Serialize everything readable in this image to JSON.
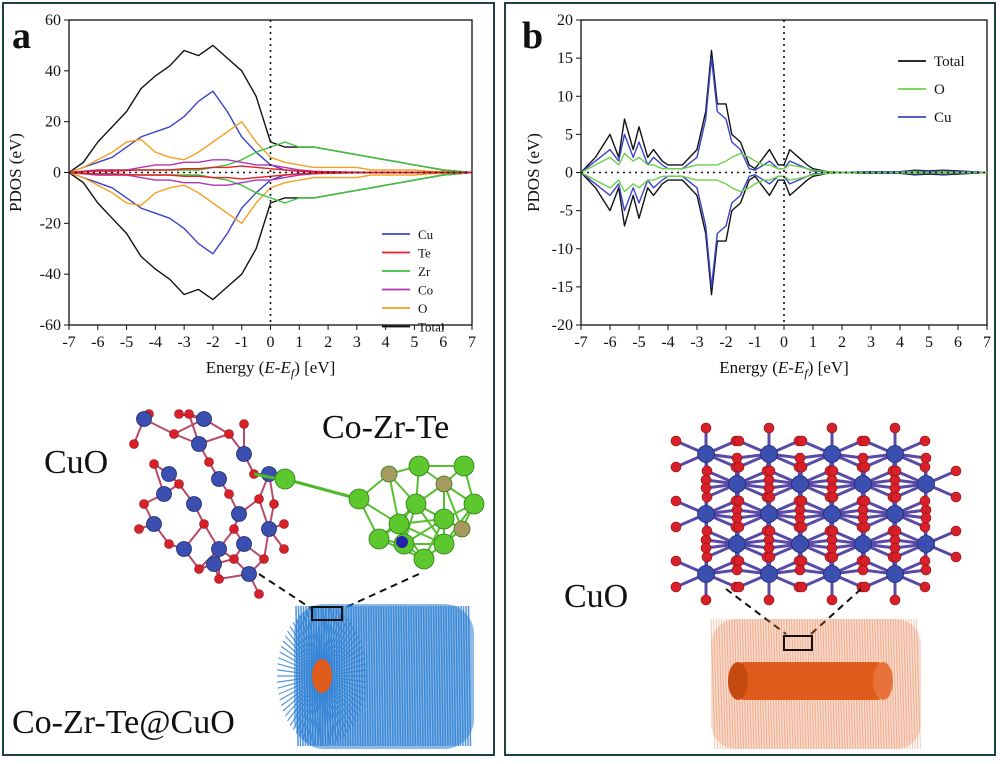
{
  "panel_a": {
    "label": "a",
    "structure_labels": {
      "cuo": "CuO",
      "cluster": "Co-Zr-Te",
      "composite": "Co-Zr-Te@CuO"
    }
  },
  "panel_b": {
    "label": "b",
    "structure_labels": {
      "cuo": "CuO"
    }
  },
  "colors": {
    "Cu": "#3c43c8",
    "Te": "#e8202a",
    "Zr": "#3cc43c",
    "Co": "#b335b3",
    "O_a": "#f5a023",
    "O_b": "#6ed04a",
    "Total": "#111111",
    "cu_atom": "#3a4fb0",
    "o_atom": "#d8202a",
    "zr_atom": "#5dc72e",
    "te_atom": "#a89a5e",
    "nanorod_blue": "#2e7fd4",
    "nanorod_orange": "#e05c1c"
  },
  "chart_data": [
    {
      "type": "line",
      "panel": "a",
      "title": "",
      "xlabel": "Energy (E-Ef) [eV]",
      "ylabel": "PDOS (eV)",
      "xlim": [
        -7,
        7
      ],
      "ylim": [
        -60,
        60
      ],
      "xticks": [
        -7,
        -6,
        -5,
        -4,
        -3,
        -2,
        -1,
        0,
        1,
        2,
        3,
        4,
        5,
        6,
        7
      ],
      "yticks": [
        -60,
        -40,
        -20,
        0,
        20,
        40,
        60
      ],
      "fermi_line_x": 0,
      "legend_position": "bottom-right",
      "legend": [
        "Cu",
        "Te",
        "Zr",
        "Co",
        "O",
        "Total"
      ],
      "x": [
        -7,
        -6.5,
        -6,
        -5.5,
        -5,
        -4.5,
        -4,
        -3.5,
        -3,
        -2.5,
        -2,
        -1.5,
        -1,
        -0.5,
        0,
        0.5,
        1,
        1.5,
        2,
        2.5,
        3,
        3.5,
        4,
        4.5,
        5,
        5.5,
        6,
        6.5,
        7
      ],
      "series": [
        {
          "name": "Total",
          "values": [
            0,
            4,
            12,
            18,
            24,
            33,
            38,
            42,
            48,
            46,
            50,
            45,
            40,
            30,
            12,
            10,
            10,
            10,
            9,
            8,
            7,
            6,
            5,
            4,
            3,
            2,
            1,
            0.5,
            0
          ]
        },
        {
          "name": "Cu",
          "values": [
            0,
            2,
            4,
            6,
            10,
            14,
            16,
            18,
            22,
            28,
            32,
            24,
            14,
            8,
            3,
            1,
            0.5,
            0.3,
            0.2,
            0.1,
            0,
            0,
            0,
            0,
            0,
            0,
            0,
            0,
            0
          ]
        },
        {
          "name": "O",
          "values": [
            0,
            2,
            5,
            8,
            12,
            13,
            8,
            6,
            5,
            8,
            12,
            16,
            20,
            12,
            6,
            4,
            3,
            2,
            2,
            2,
            2,
            1,
            1,
            1,
            1,
            0.5,
            0.3,
            0.1,
            0
          ]
        },
        {
          "name": "Zr",
          "values": [
            0,
            0.5,
            1,
            1,
            1,
            1,
            1,
            1,
            1,
            1,
            2,
            3,
            5,
            8,
            10,
            12,
            10,
            10,
            9,
            8,
            7,
            6,
            5,
            4,
            3,
            2,
            1,
            0.5,
            0
          ]
        },
        {
          "name": "Co",
          "values": [
            0,
            0.5,
            1,
            1,
            1,
            2,
            3,
            3,
            4,
            4,
            5,
            5,
            4,
            3,
            3,
            2,
            1,
            0.5,
            0.3,
            0.2,
            0.1,
            0,
            0,
            0,
            0,
            0,
            0,
            0,
            0
          ]
        },
        {
          "name": "Te",
          "values": [
            0,
            0.3,
            0.5,
            0.5,
            0.8,
            1,
            1,
            1,
            1.5,
            1.5,
            2,
            2,
            2.5,
            2,
            1.5,
            1,
            0.5,
            0.3,
            0.2,
            0.1,
            0,
            0,
            0,
            0,
            0,
            0,
            0,
            0,
            0
          ]
        }
      ],
      "mirrored_about_zero": true
    },
    {
      "type": "line",
      "panel": "b",
      "title": "",
      "xlabel": "Energy (E-Ef) [eV]",
      "ylabel": "PDOS (eV)",
      "xlim": [
        -7,
        7
      ],
      "ylim": [
        -20,
        20
      ],
      "xticks": [
        -7,
        -6,
        -5,
        -4,
        -3,
        -2,
        -1,
        0,
        1,
        2,
        3,
        4,
        5,
        6,
        7
      ],
      "yticks": [
        -20,
        -15,
        -10,
        -5,
        0,
        5,
        10,
        15,
        20
      ],
      "fermi_line_x": 0,
      "legend_position": "top-right",
      "legend": [
        "Total",
        "O",
        "Cu"
      ],
      "x": [
        -7,
        -6.5,
        -6,
        -5.7,
        -5.5,
        -5.2,
        -5,
        -4.7,
        -4.5,
        -4.2,
        -4,
        -3.5,
        -3,
        -2.7,
        -2.5,
        -2.3,
        -2,
        -1.8,
        -1.5,
        -1.2,
        -1,
        -0.7,
        -0.5,
        -0.2,
        0,
        0.2,
        0.5,
        0.8,
        1,
        1.5,
        2,
        3,
        4,
        4.5,
        5,
        5.5,
        6,
        6.5,
        7
      ],
      "series": [
        {
          "name": "Total",
          "values": [
            0,
            2,
            5,
            2,
            7,
            3,
            6,
            2,
            3,
            1.5,
            1,
            1,
            3,
            8,
            16,
            9,
            9,
            5,
            4,
            1,
            0.5,
            2,
            3,
            1,
            1,
            3,
            2,
            1,
            0.5,
            0.1,
            0,
            0.1,
            0.1,
            0.3,
            0.2,
            0.3,
            0.2,
            0.1,
            0
          ]
        },
        {
          "name": "Cu",
          "values": [
            0,
            1.5,
            3,
            1.5,
            5,
            2,
            4,
            1,
            2,
            1,
            0.5,
            0.5,
            2,
            7,
            15,
            8,
            7,
            4,
            3,
            0.5,
            0.3,
            1,
            1.5,
            0.5,
            0.5,
            1.5,
            1,
            0.5,
            0.2,
            0.1,
            0,
            0.1,
            0.1,
            0.2,
            0.1,
            0.2,
            0.1,
            0.1,
            0
          ]
        },
        {
          "name": "O",
          "values": [
            0,
            1,
            2,
            1,
            2.5,
            1.5,
            2,
            1,
            1,
            0.5,
            0.5,
            0.5,
            1,
            1,
            1,
            1,
            1.5,
            2,
            2.5,
            2,
            1.5,
            1,
            1,
            0.5,
            0.5,
            1,
            0.8,
            0.5,
            0.3,
            0.1,
            0,
            0,
            0,
            0.1,
            0,
            0.1,
            0,
            0,
            0
          ]
        }
      ],
      "mirrored_about_zero": true
    }
  ]
}
